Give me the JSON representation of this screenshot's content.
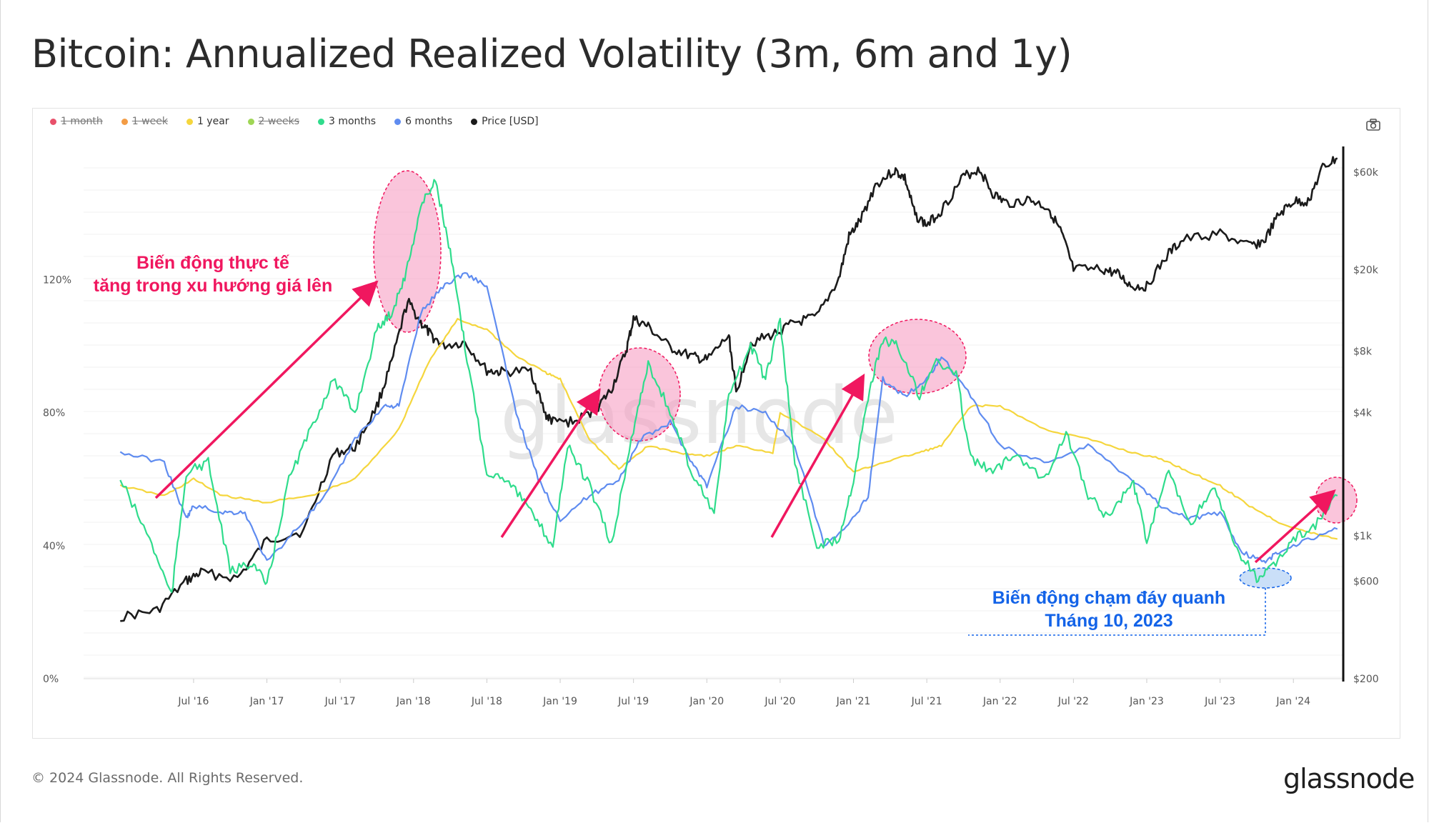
{
  "title": "Bitcoin: Annualized Realized Volatility (3m, 6m and 1y)",
  "footer": "© 2024 Glassnode. All Rights Reserved.",
  "logo": "glassnode",
  "watermark": "glassnode",
  "camera_icon": "camera-icon",
  "legend": [
    {
      "label": "1 month",
      "color": "#e8506a",
      "disabled": true
    },
    {
      "label": "1 week",
      "color": "#f39c45",
      "disabled": true
    },
    {
      "label": "1 year",
      "color": "#f5d63d",
      "disabled": false
    },
    {
      "label": "2 weeks",
      "color": "#9fd655",
      "disabled": true
    },
    {
      "label": "3 months",
      "color": "#2fdc8c",
      "disabled": false
    },
    {
      "label": "6 months",
      "color": "#5f8cf0",
      "disabled": false
    },
    {
      "label": "Price [USD]",
      "color": "#1b1b1b",
      "disabled": false
    }
  ],
  "annotations": {
    "rise_text_1": "Biến động thực tế",
    "rise_text_2": "tăng trong xu hướng giá lên",
    "bottom_text_1": "Biến động chạm đáy quanh",
    "bottom_text_2": "Tháng 10, 2023"
  },
  "chart_data": {
    "type": "line",
    "x_ticks": [
      "Jul '16",
      "Jan '17",
      "Jul '17",
      "Jan '18",
      "Jul '18",
      "Jan '19",
      "Jul '19",
      "Jan '20",
      "Jul '20",
      "Jan '21",
      "Jul '21",
      "Jan '22",
      "Jul '22",
      "Jan '23",
      "Jul '23",
      "Jan '24"
    ],
    "y_left_ticks": [
      "0%",
      "40%",
      "80%",
      "120%"
    ],
    "y_right_ticks": [
      "$200",
      "$600",
      "$1k",
      "$4k",
      "$8k",
      "$20k",
      "$60k"
    ],
    "y_left_range": [
      0,
      160
    ],
    "y_right_range": [
      200,
      80000
    ],
    "y_right_scale": "log",
    "grid": true,
    "legend_position": "top-left",
    "x_range": [
      2015.75,
      2024.34
    ],
    "series": [
      {
        "name": "Price [USD]",
        "color": "#1b1b1b",
        "axis": "right",
        "x": [
          2016.0,
          2016.25,
          2016.45,
          2016.55,
          2016.8,
          2017.0,
          2017.25,
          2017.45,
          2017.6,
          2017.75,
          2017.85,
          2017.96,
          2018.05,
          2018.12,
          2018.2,
          2018.35,
          2018.5,
          2018.6,
          2018.8,
          2018.9,
          2018.95,
          2019.1,
          2019.25,
          2019.35,
          2019.45,
          2019.5,
          2019.6,
          2019.75,
          2019.9,
          2020.0,
          2020.15,
          2020.2,
          2020.3,
          2020.45,
          2020.6,
          2020.75,
          2020.9,
          2020.97,
          2021.05,
          2021.15,
          2021.28,
          2021.35,
          2021.42,
          2021.5,
          2021.6,
          2021.75,
          2021.86,
          2021.95,
          2022.05,
          2022.2,
          2022.33,
          2022.42,
          2022.5,
          2022.7,
          2022.8,
          2022.9,
          2023.0,
          2023.15,
          2023.25,
          2023.5,
          2023.7,
          2023.8,
          2023.9,
          2024.0,
          2024.1,
          2024.2,
          2024.3
        ],
        "y": [
          400,
          430,
          600,
          660,
          620,
          950,
          1050,
          2500,
          2700,
          4300,
          7000,
          14000,
          11000,
          9500,
          8500,
          8800,
          6400,
          6300,
          6400,
          3900,
          3600,
          3600,
          4200,
          5200,
          8000,
          11500,
          10500,
          8300,
          7500,
          7200,
          9500,
          5000,
          8800,
          9600,
          11000,
          11700,
          18000,
          29000,
          35000,
          52000,
          61000,
          56000,
          37000,
          33000,
          39000,
          57000,
          62000,
          47000,
          42000,
          44000,
          40000,
          30000,
          20000,
          20000,
          19000,
          16500,
          16600,
          24000,
          28000,
          30000,
          26000,
          27500,
          37000,
          43000,
          43000,
          63000,
          70000
        ]
      },
      {
        "name": "1 year",
        "color": "#f5d63d",
        "axis": "left",
        "x": [
          2016.0,
          2016.3,
          2016.5,
          2016.7,
          2017.0,
          2017.3,
          2017.6,
          2017.9,
          2018.1,
          2018.3,
          2018.5,
          2018.7,
          2018.9,
          2019.0,
          2019.2,
          2019.4,
          2019.6,
          2019.8,
          2020.0,
          2020.2,
          2020.45,
          2020.5,
          2020.8,
          2021.0,
          2021.2,
          2021.45,
          2021.6,
          2021.8,
          2022.0,
          2022.3,
          2022.6,
          2022.9,
          2023.1,
          2023.3,
          2023.5,
          2023.7,
          2023.9,
          2024.1,
          2024.3
        ],
        "y": [
          58,
          55,
          60,
          55,
          53,
          55,
          60,
          75,
          95,
          108,
          105,
          97,
          92,
          90,
          72,
          63,
          70,
          68,
          67,
          70,
          68,
          80,
          72,
          62,
          65,
          68,
          70,
          82,
          82,
          75,
          72,
          68,
          66,
          62,
          58,
          52,
          47,
          44,
          42
        ]
      },
      {
        "name": "6 months",
        "color": "#5f8cf0",
        "axis": "left",
        "x": [
          2016.0,
          2016.3,
          2016.45,
          2016.5,
          2016.7,
          2016.85,
          2017.0,
          2017.2,
          2017.4,
          2017.6,
          2017.8,
          2017.9,
          2018.05,
          2018.2,
          2018.35,
          2018.5,
          2018.7,
          2018.85,
          2019.0,
          2019.2,
          2019.4,
          2019.55,
          2019.75,
          2019.9,
          2020.0,
          2020.2,
          2020.4,
          2020.6,
          2020.8,
          2020.95,
          2021.1,
          2021.2,
          2021.35,
          2021.5,
          2021.6,
          2021.8,
          2022.0,
          2022.3,
          2022.6,
          2022.9,
          2023.1,
          2023.3,
          2023.5,
          2023.65,
          2023.8,
          2023.9,
          2024.1,
          2024.3
        ],
        "y": [
          68,
          65,
          48,
          52,
          50,
          50,
          35,
          45,
          55,
          72,
          82,
          82,
          110,
          118,
          122,
          118,
          80,
          60,
          48,
          55,
          60,
          72,
          77,
          65,
          58,
          82,
          80,
          70,
          40,
          45,
          55,
          90,
          85,
          90,
          97,
          85,
          70,
          65,
          70,
          60,
          52,
          48,
          50,
          38,
          35,
          38,
          42,
          45
        ]
      },
      {
        "name": "3 months",
        "color": "#2fdc8c",
        "axis": "left",
        "x": [
          2016.0,
          2016.2,
          2016.35,
          2016.45,
          2016.6,
          2016.75,
          2016.9,
          2017.0,
          2017.15,
          2017.3,
          2017.45,
          2017.6,
          2017.75,
          2017.85,
          2017.95,
          2018.05,
          2018.15,
          2018.25,
          2018.35,
          2018.5,
          2018.65,
          2018.8,
          2018.95,
          2019.05,
          2019.2,
          2019.35,
          2019.5,
          2019.6,
          2019.75,
          2019.9,
          2020.05,
          2020.15,
          2020.3,
          2020.4,
          2020.5,
          2020.6,
          2020.75,
          2020.9,
          2021.0,
          2021.1,
          2021.2,
          2021.3,
          2021.45,
          2021.55,
          2021.7,
          2021.8,
          2021.95,
          2022.1,
          2022.3,
          2022.45,
          2022.6,
          2022.75,
          2022.9,
          2023.0,
          2023.15,
          2023.3,
          2023.45,
          2023.6,
          2023.75,
          2023.85,
          2024.0,
          2024.15,
          2024.3
        ],
        "y": [
          60,
          42,
          25,
          62,
          65,
          32,
          35,
          28,
          60,
          75,
          90,
          80,
          105,
          110,
          122,
          142,
          150,
          128,
          100,
          62,
          60,
          50,
          40,
          70,
          58,
          40,
          75,
          95,
          80,
          62,
          50,
          85,
          100,
          90,
          108,
          65,
          40,
          42,
          60,
          85,
          102,
          100,
          85,
          95,
          92,
          66,
          62,
          68,
          60,
          74,
          55,
          48,
          60,
          42,
          62,
          46,
          58,
          40,
          30,
          33,
          42,
          46,
          55
        ]
      }
    ]
  }
}
